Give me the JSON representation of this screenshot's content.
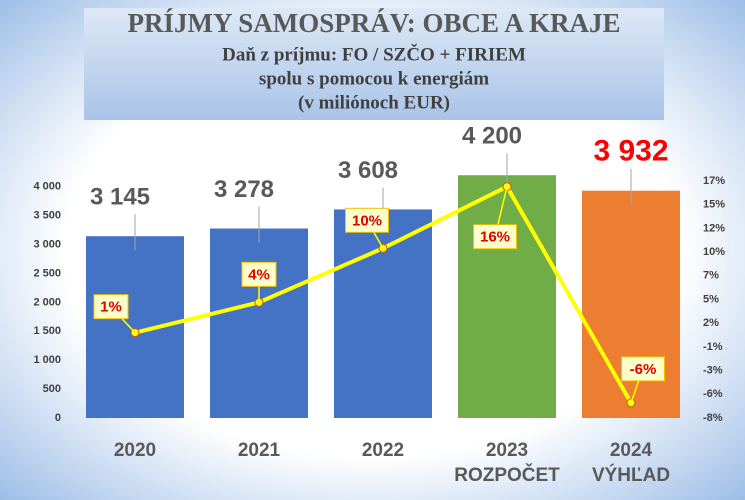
{
  "chart_data": {
    "type": "bar",
    "title": "PRÍJMY SAMOSPRÁV: OBCE A KRAJE",
    "subtitle": [
      "Daň z príjmu: FO / SZČO + FIRIEM",
      "spolu s pomocou k energiám",
      "(v miliónoch EUR)"
    ],
    "categories": [
      "2020",
      "2021",
      "2022",
      "2023",
      "2024"
    ],
    "category_notes": [
      null,
      null,
      null,
      "ROZPOČET",
      "VÝHĽAD"
    ],
    "ylim": [
      0,
      4100
    ],
    "yticks": [
      0,
      500,
      {
        "value": 1000,
        "label": "1 000"
      },
      {
        "value": 1500,
        "label": "1 500"
      },
      {
        "value": 2000,
        "label": "2 000"
      },
      {
        "value": 2500,
        "label": "2 500"
      },
      {
        "value": 3000,
        "label": "3 000"
      },
      {
        "value": 3500,
        "label": "3 500"
      },
      {
        "value": 4000,
        "label": "4 000"
      }
    ],
    "y2lim": [
      -8,
      17
    ],
    "y2ticks": [
      {
        "value": -8,
        "label": "-8%"
      },
      {
        "value": -5.5,
        "label": "-6%"
      },
      {
        "value": -3,
        "label": "-3%"
      },
      {
        "value": -0.5,
        "label": "-1%"
      },
      {
        "value": 2,
        "label": "2%"
      },
      {
        "value": 4.5,
        "label": "5%"
      },
      {
        "value": 7,
        "label": "7%"
      },
      {
        "value": 9.5,
        "label": "10%"
      },
      {
        "value": 12,
        "label": "12%"
      },
      {
        "value": 14.5,
        "label": "15%"
      },
      {
        "value": 17,
        "label": "17%"
      }
    ],
    "series": [
      {
        "type": "bar",
        "values": [
          3145,
          3278,
          3608,
          4200,
          3932
        ],
        "value_labels": [
          "3 145",
          "3 278",
          "3 608",
          "4 200",
          "3 932"
        ],
        "colors": [
          "#4472c4",
          "#4472c4",
          "#4472c4",
          "#70ad47",
          "#ed7d31"
        ]
      },
      {
        "type": "line",
        "axis": "y2",
        "color": "#ffff00",
        "values": [
          1,
          4.2,
          9.9,
          16.4,
          -6.4
        ],
        "value_labels": [
          "1%",
          "4%",
          "10%",
          "16%",
          "-6%"
        ]
      }
    ]
  }
}
